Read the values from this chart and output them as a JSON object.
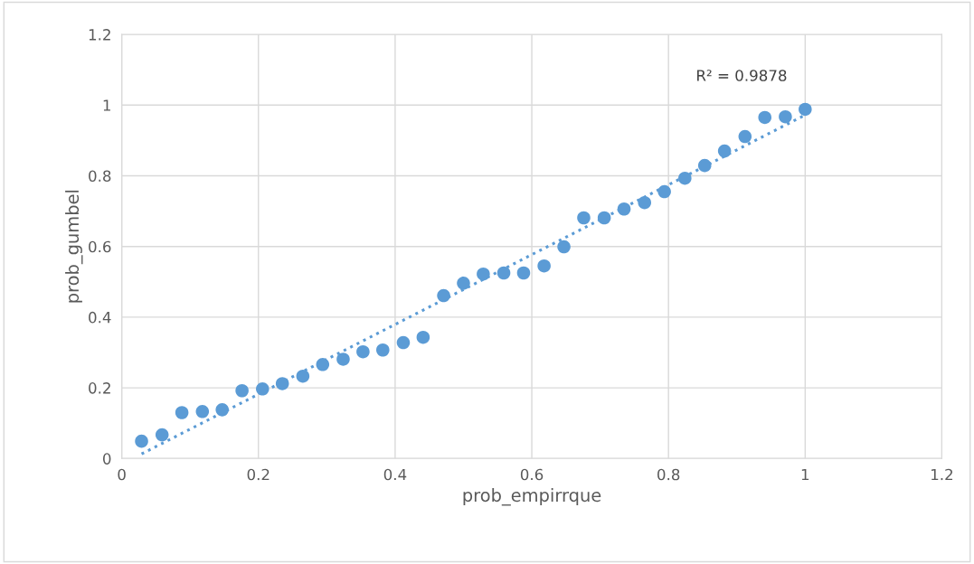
{
  "chart_data": {
    "type": "scatter",
    "xlabel": "prob_empirrque",
    "ylabel": "prob_gumbel",
    "xlim": [
      0,
      1.2
    ],
    "ylim": [
      0,
      1.2
    ],
    "xticks": [
      0,
      0.2,
      0.4,
      0.6,
      0.8,
      1,
      1.2
    ],
    "yticks": [
      0,
      0.2,
      0.4,
      0.6,
      0.8,
      1,
      1.2
    ],
    "grid": true,
    "marker": "circle",
    "annotations": [
      "R² = 0.9878"
    ],
    "series": [
      {
        "color": "#5b9bd5",
        "x": [
          0.029,
          0.059,
          0.088,
          0.118,
          0.147,
          0.176,
          0.206,
          0.235,
          0.265,
          0.294,
          0.324,
          0.353,
          0.382,
          0.412,
          0.441,
          0.471,
          0.5,
          0.529,
          0.559,
          0.588,
          0.618,
          0.647,
          0.676,
          0.706,
          0.735,
          0.765,
          0.794,
          0.824,
          0.853,
          0.882,
          0.912,
          0.941,
          0.971,
          1.0
        ],
        "values": [
          0.049,
          0.067,
          0.13,
          0.133,
          0.138,
          0.192,
          0.197,
          0.212,
          0.233,
          0.266,
          0.281,
          0.302,
          0.307,
          0.328,
          0.343,
          0.461,
          0.496,
          0.522,
          0.525,
          0.525,
          0.545,
          0.599,
          0.681,
          0.681,
          0.706,
          0.724,
          0.755,
          0.793,
          0.829,
          0.87,
          0.911,
          0.965,
          0.967,
          0.988
        ]
      },
      {
        "type": "line",
        "line_style": "dotted",
        "marker": "none",
        "color": "#5b9bd5",
        "x": [
          0.029,
          1.0
        ],
        "values": [
          0.013,
          0.972
        ]
      }
    ]
  }
}
